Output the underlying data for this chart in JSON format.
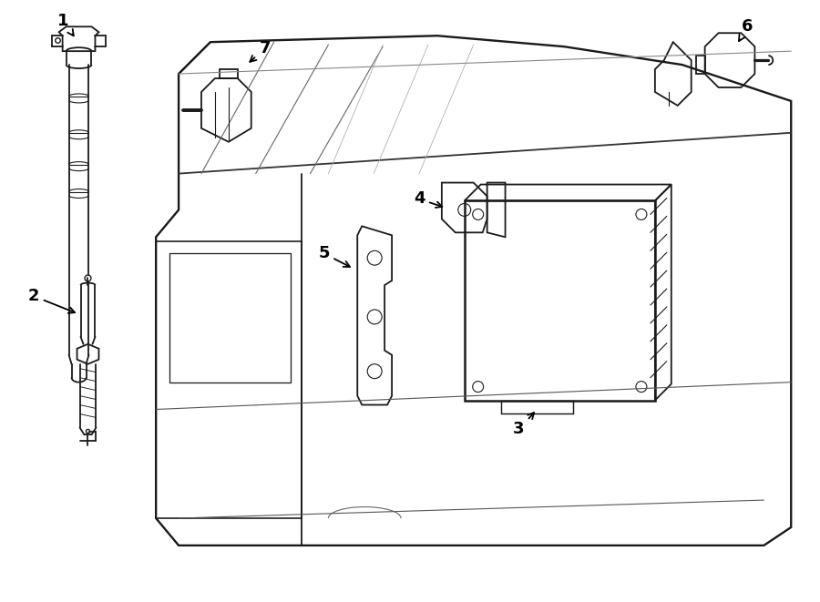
{
  "background_color": "#ffffff",
  "line_color": "#1a1a1a",
  "label_color": "#000000",
  "figsize": [
    9.0,
    6.61
  ],
  "dpi": 100,
  "lw_main": 1.3,
  "lw_thin": 0.8,
  "label_fontsize": 13
}
